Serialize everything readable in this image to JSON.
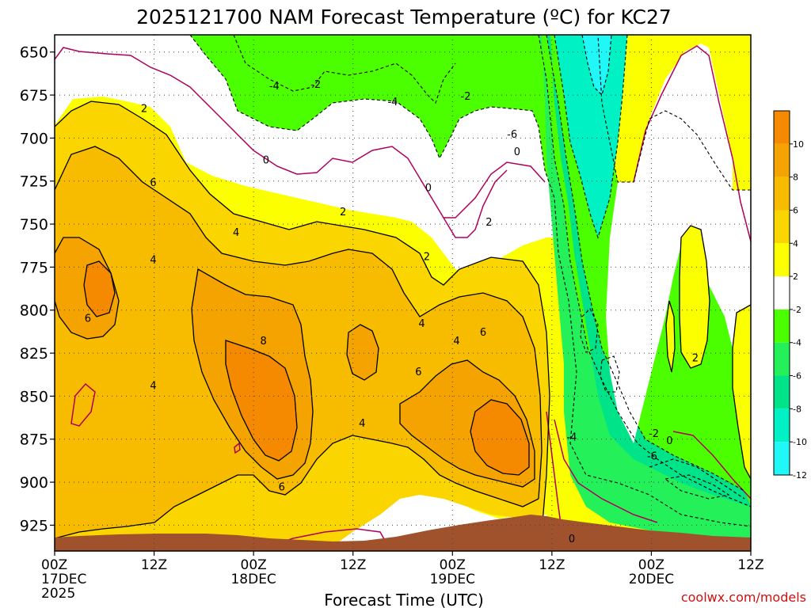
{
  "chart_data": {
    "type": "heatmap",
    "title": "2025121700 NAM Forecast Temperature (ºC) for KC27",
    "xlabel": "Forecast Time (UTC)",
    "credit": "coolwx.com/models",
    "x_range_hours": [
      0,
      84
    ],
    "y_range_hpa": [
      940,
      640
    ],
    "y_ticks": [
      "650",
      "675",
      "700",
      "725",
      "750",
      "775",
      "800",
      "825",
      "850",
      "875",
      "900",
      "925"
    ],
    "x_ticks": [
      {
        "hour": 0,
        "lines": [
          "00Z",
          "17DEC",
          "2025"
        ]
      },
      {
        "hour": 12,
        "lines": [
          "12Z"
        ]
      },
      {
        "hour": 24,
        "lines": [
          "00Z",
          "18DEC"
        ]
      },
      {
        "hour": 36,
        "lines": [
          "12Z"
        ]
      },
      {
        "hour": 48,
        "lines": [
          "00Z",
          "19DEC"
        ]
      },
      {
        "hour": 60,
        "lines": [
          "12Z"
        ]
      },
      {
        "hour": 72,
        "lines": [
          "00Z",
          "20DEC"
        ]
      },
      {
        "hour": 84,
        "lines": [
          "12Z"
        ]
      }
    ],
    "legend": {
      "labels": [
        "10",
        "8",
        "6",
        "4",
        "2",
        "-2",
        "-4",
        "-6",
        "-8",
        "-10",
        "-12"
      ],
      "colors": [
        "#f58a00",
        "#f5a300",
        "#f7bb00",
        "#fad500",
        "#fcff00",
        "#ffffff",
        "#4bff00",
        "#24f05a",
        "#00e389",
        "#00f2c4",
        "#21f7f7"
      ]
    },
    "contour_labels": [
      {
        "text": "2",
        "h": 10.8,
        "p": 683
      },
      {
        "text": "-4",
        "h": 26.5,
        "p": 670
      },
      {
        "text": "-2",
        "h": 31.5,
        "p": 669
      },
      {
        "text": "-4",
        "h": 40.8,
        "p": 679
      },
      {
        "text": "-2",
        "h": 49.6,
        "p": 676
      },
      {
        "text": "0",
        "h": 25.5,
        "p": 713
      },
      {
        "text": "0",
        "h": 45.1,
        "p": 729
      },
      {
        "text": "0",
        "h": 55.8,
        "p": 708
      },
      {
        "text": "-6",
        "h": 55.2,
        "p": 698
      },
      {
        "text": "6",
        "h": 11.9,
        "p": 726
      },
      {
        "text": "2",
        "h": 34.8,
        "p": 743
      },
      {
        "text": "4",
        "h": 21.9,
        "p": 755
      },
      {
        "text": "4",
        "h": 11.9,
        "p": 771
      },
      {
        "text": "2",
        "h": 44.9,
        "p": 769
      },
      {
        "text": "2",
        "h": 52.4,
        "p": 749
      },
      {
        "text": "6",
        "h": 4.0,
        "p": 805
      },
      {
        "text": "4",
        "h": 44.3,
        "p": 808
      },
      {
        "text": "4",
        "h": 48.5,
        "p": 818
      },
      {
        "text": "6",
        "h": 51.7,
        "p": 813
      },
      {
        "text": "8",
        "h": 25.2,
        "p": 818
      },
      {
        "text": "4",
        "h": 11.9,
        "p": 844
      },
      {
        "text": "6",
        "h": 43.9,
        "p": 836
      },
      {
        "text": "2",
        "h": 77.3,
        "p": 828
      },
      {
        "text": "4",
        "h": 37.1,
        "p": 866
      },
      {
        "text": "6",
        "h": 27.4,
        "p": 903
      },
      {
        "text": "-4",
        "h": 62.4,
        "p": 874
      },
      {
        "text": "-2",
        "h": 72.3,
        "p": 872
      },
      {
        "text": "0",
        "h": 74.2,
        "p": 876
      },
      {
        "text": "-6",
        "h": 72.1,
        "p": 885
      },
      {
        "text": "0",
        "h": 62.4,
        "p": 933
      }
    ]
  }
}
